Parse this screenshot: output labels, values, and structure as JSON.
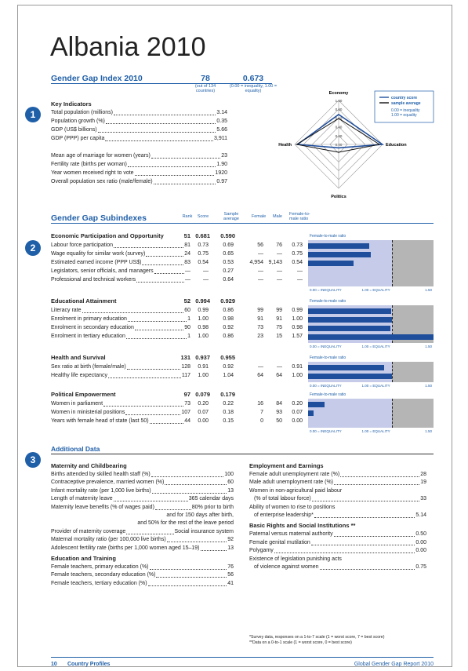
{
  "title": "Albania 2010",
  "index": {
    "title": "Gender Gap Index 2010",
    "rank": "78",
    "score": "0.673",
    "rank_note": "(out of 134 countries)",
    "score_note": "(0.00 = inequality, 1.00 = equality)"
  },
  "badges": [
    "1",
    "2",
    "3"
  ],
  "key_indicators": {
    "title": "Key Indicators",
    "groups": [
      [
        {
          "label": "Total population (millions)",
          "value": "3.14"
        },
        {
          "label": "Population growth (%)",
          "value": "0.35"
        },
        {
          "label": "GDP (US$ billions)",
          "value": "5.66"
        },
        {
          "label": "GDP (PPP) per capita",
          "value": "3,911"
        }
      ],
      [
        {
          "label": "Mean age of marriage for women (years)",
          "value": "23"
        },
        {
          "label": "Fertility rate (births per woman)",
          "value": "1.90"
        },
        {
          "label": "Year women received right to vote",
          "value": "1920"
        },
        {
          "label": "Overall population sex ratio (male/female)",
          "value": "0.97"
        }
      ]
    ]
  },
  "radar": {
    "axes": [
      "Economy",
      "Education",
      "Politics",
      "Health"
    ],
    "ticks": [
      {
        "value": 0,
        "label": "0.00"
      },
      {
        "value": 0.2,
        "label": "0.20"
      },
      {
        "value": 0.4,
        "label": "0.40"
      },
      {
        "value": 0.6,
        "label": "0.60"
      },
      {
        "value": 0.8,
        "label": "0.80"
      },
      {
        "value": 1,
        "label": "1.00"
      }
    ],
    "legend": [
      "country score",
      "sample average"
    ],
    "legend_notes": [
      "0.00 = inequality",
      "1.00 = equality"
    ]
  },
  "subindexes": {
    "title": "Gender Gap Subindexes",
    "headers": [
      "Rank",
      "Score",
      "Sample average",
      "Female",
      "Male",
      "Female-to-male ratio"
    ],
    "panel_label": "Female-to-male ratio",
    "scale": [
      {
        "value": 0,
        "label": "0.00 = INEQUALITY"
      },
      {
        "value": 1,
        "label": "1.00 = EQUALITY"
      },
      {
        "value": 1.5,
        "label": "1.50"
      }
    ],
    "groups": [
      {
        "name": "Economic Participation and Opportunity",
        "rank": "51",
        "score": "0.681",
        "average": "0.590",
        "rows": [
          [
            "Labour force participation",
            "81",
            "0.73",
            "0.69",
            "56",
            "76",
            "0.73"
          ],
          [
            "Wage equality for similar work (survey)",
            "24",
            "0.75",
            "0.65",
            "—",
            "—",
            "0.75"
          ],
          [
            "Estimated earned income (PPP US$)",
            "83",
            "0.54",
            "0.53",
            "4,954",
            "9,143",
            "0.54"
          ],
          [
            "Legislators, senior officials, and managers",
            "—",
            "—",
            "0.27",
            "—",
            "—",
            "—"
          ],
          [
            "Professional and technical workers",
            "—",
            "—",
            "0.64",
            "—",
            "—",
            "—"
          ]
        ]
      },
      {
        "name": "Educational Attainment",
        "rank": "52",
        "score": "0.994",
        "average": "0.929",
        "rows": [
          [
            "Literacy rate",
            "60",
            "0.99",
            "0.86",
            "99",
            "99",
            "0.99"
          ],
          [
            "Enrolment in primary education",
            "1",
            "1.00",
            "0.98",
            "91",
            "91",
            "1.00"
          ],
          [
            "Enrolment in secondary education",
            "90",
            "0.98",
            "0.92",
            "73",
            "75",
            "0.98"
          ],
          [
            "Enrolment in tertiary education",
            "1",
            "1.00",
            "0.86",
            "23",
            "15",
            "1.57"
          ]
        ]
      },
      {
        "name": "Health and Survival",
        "rank": "131",
        "score": "0.937",
        "average": "0.955",
        "rows": [
          [
            "Sex ratio at birth (female/male)",
            "128",
            "0.91",
            "0.92",
            "—",
            "—",
            "0.91"
          ],
          [
            "Healthy life expectancy",
            "117",
            "1.00",
            "1.04",
            "64",
            "64",
            "1.00"
          ]
        ]
      },
      {
        "name": "Political Empowerment",
        "rank": "97",
        "score": "0.079",
        "average": "0.179",
        "rows": [
          [
            "Women in parliament",
            "73",
            "0.20",
            "0.22",
            "16",
            "84",
            "0.20"
          ],
          [
            "Women in ministerial positions",
            "107",
            "0.07",
            "0.18",
            "7",
            "93",
            "0.07"
          ],
          [
            "Years with female head of state (last 50)",
            "44",
            "0.00",
            "0.15",
            "0",
            "50",
            "0.00"
          ]
        ]
      }
    ]
  },
  "additional": {
    "title": "Additional Data",
    "columns": [
      [
        {
          "heading": "Maternity and Childbearing",
          "items": [
            {
              "lines": [
                "Births attended by skilled health staff (%)"
              ],
              "value": "100"
            },
            {
              "lines": [
                "Contraceptive prevalence, married women (%)"
              ],
              "value": "60"
            },
            {
              "lines": [
                "Infant mortality rate (per 1,000 live births)"
              ],
              "value": "13"
            },
            {
              "lines": [
                "Length of maternity leave"
              ],
              "value": "365 calendar days"
            },
            {
              "lines": [
                "Maternity leave benefits (% of wages paid)"
              ],
              "value": "80% prior to birth",
              "more": [
                "and for 150 days after birth,",
                "and 50% for the rest of the leave period"
              ]
            },
            {
              "lines": [
                "Provider of maternity coverage"
              ],
              "value": "Social insurance system"
            },
            {
              "lines": [
                "Maternal mortality ratio (per 100,000 live births)"
              ],
              "value": "92"
            },
            {
              "lines": [
                "Adolescent fertility rate (births per 1,000 women aged 15–19)"
              ],
              "value": "13"
            }
          ]
        },
        {
          "heading": "Education and Training",
          "items": [
            {
              "lines": [
                "Female teachers, primary education (%)"
              ],
              "value": "76"
            },
            {
              "lines": [
                "Female teachers, secondary education (%)"
              ],
              "value": "56"
            },
            {
              "lines": [
                "Female teachers, tertiary education (%)"
              ],
              "value": "41"
            }
          ]
        }
      ],
      [
        {
          "heading": "Employment and Earnings",
          "items": [
            {
              "lines": [
                "Female adult unemployment rate (%)"
              ],
              "value": "28"
            },
            {
              "lines": [
                "Male adult unemployment rate (%)"
              ],
              "value": "19"
            },
            {
              "lines": [
                "Women in non-agricultural paid labour",
                "(% of total labour force)"
              ],
              "value": "33"
            },
            {
              "lines": [
                "Ability of women to rise to positions",
                "of enterprise leadership*"
              ],
              "value": "5.14"
            }
          ]
        },
        {
          "heading": "Basic Rights and Social Institutions **",
          "items": [
            {
              "lines": [
                "Paternal versus maternal authority"
              ],
              "value": "0.50"
            },
            {
              "lines": [
                "Female genital mutilation"
              ],
              "value": "0.00"
            },
            {
              "lines": [
                "Polygamy"
              ],
              "value": "0.00"
            },
            {
              "lines": [
                "Existence of legislation punishing acts",
                "of violence against women"
              ],
              "value": "0.75"
            }
          ]
        }
      ]
    ]
  },
  "footnotes": [
    "*Survey data, responses on a 1-to-7 scale (1 = worst score, 7 = best score)",
    "**Data on a 0-to-1 scale (1 = worst score, 0 = best score)"
  ],
  "footer": {
    "page": "10",
    "section": "Country Profiles",
    "report": "Global Gender Gap Report 2010"
  }
}
